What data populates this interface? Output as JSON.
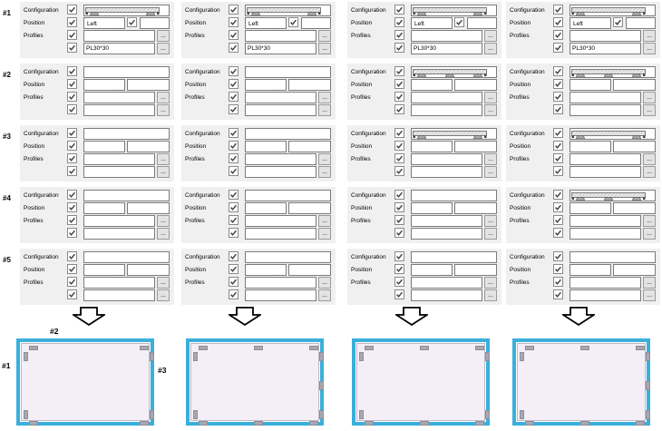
{
  "field_labels": {
    "configuration": "Configuration",
    "position": "Position",
    "profiles": "Profiles"
  },
  "group_numbers": [
    "#1",
    "#2",
    "#3",
    "#4",
    "#5"
  ],
  "browse_label": "...",
  "checkboxes_all_checked": true,
  "colors": {
    "panel_bg": "#f0f0f0",
    "control_border": "#7b7b7b",
    "frame_border": "#3aafdc",
    "frame_fill": "#f4eff7",
    "clip_gray": "#a8a8b2"
  },
  "columns": [
    {
      "groups": [
        {
          "config": "plate-2-supports",
          "position_option": "Left",
          "position_extra_checkbox": true,
          "position_value": "",
          "profile_1": "",
          "profile_2": "PL30*30"
        },
        {
          "config": "",
          "position_option": "",
          "position_extra_checkbox": false,
          "position_value": "",
          "profile_1": "",
          "profile_2": ""
        },
        {
          "config": "",
          "position_option": "",
          "position_extra_checkbox": false,
          "position_value": "",
          "profile_1": "",
          "profile_2": ""
        },
        {
          "config": "",
          "position_option": "",
          "position_extra_checkbox": false,
          "position_value": "",
          "profile_1": "",
          "profile_2": ""
        },
        {
          "config": "",
          "position_option": "",
          "position_extra_checkbox": false,
          "position_value": "",
          "profile_1": "",
          "profile_2": ""
        }
      ]
    },
    {
      "groups": [
        {
          "config": "plate-2-supports",
          "position_option": "Left",
          "position_extra_checkbox": true,
          "position_value": "",
          "profile_1": "",
          "profile_2": "PL30*30"
        },
        {
          "config": "",
          "position_option": "",
          "position_extra_checkbox": false,
          "position_value": "",
          "profile_1": "",
          "profile_2": ""
        },
        {
          "config": "",
          "position_option": "",
          "position_extra_checkbox": false,
          "position_value": "",
          "profile_1": "",
          "profile_2": ""
        },
        {
          "config": "",
          "position_option": "",
          "position_extra_checkbox": false,
          "position_value": "",
          "profile_1": "",
          "profile_2": ""
        },
        {
          "config": "",
          "position_option": "",
          "position_extra_checkbox": false,
          "position_value": "",
          "profile_1": "",
          "profile_2": ""
        }
      ]
    },
    {
      "groups": [
        {
          "config": "plate-2-supports",
          "position_option": "Left",
          "position_extra_checkbox": true,
          "position_value": "",
          "profile_1": "",
          "profile_2": "PL30*30"
        },
        {
          "config": "plate-3-supports",
          "position_option": "",
          "position_extra_checkbox": false,
          "position_value": "",
          "profile_1": "",
          "profile_2": ""
        },
        {
          "config": "plate-2-supports",
          "position_option": "",
          "position_extra_checkbox": false,
          "position_value": "",
          "profile_1": "",
          "profile_2": ""
        },
        {
          "config": "",
          "position_option": "",
          "position_extra_checkbox": false,
          "position_value": "",
          "profile_1": "",
          "profile_2": ""
        },
        {
          "config": "",
          "position_option": "",
          "position_extra_checkbox": false,
          "position_value": "",
          "profile_1": "",
          "profile_2": ""
        }
      ]
    },
    {
      "groups": [
        {
          "config": "plate-2-supports",
          "position_option": "Left",
          "position_extra_checkbox": true,
          "position_value": "",
          "profile_1": "",
          "profile_2": "PL30*30"
        },
        {
          "config": "plate-3-supports",
          "position_option": "",
          "position_extra_checkbox": false,
          "position_value": "",
          "profile_1": "",
          "profile_2": ""
        },
        {
          "config": "plate-2-supports",
          "position_option": "",
          "position_extra_checkbox": false,
          "position_value": "",
          "profile_1": "",
          "profile_2": ""
        },
        {
          "config": "plate-3-supports",
          "position_option": "",
          "position_extra_checkbox": false,
          "position_value": "",
          "profile_1": "",
          "profile_2": ""
        },
        {
          "config": "",
          "position_option": "",
          "position_extra_checkbox": false,
          "position_value": "",
          "profile_1": "",
          "profile_2": ""
        }
      ]
    }
  ],
  "frames": [
    {
      "edge_labels": {
        "left": "#1",
        "top": "#2",
        "right": "#3"
      },
      "clips": {
        "top": [
          "L",
          "R"
        ],
        "right": [
          "T",
          "B"
        ],
        "bottom": [
          "L",
          "R"
        ],
        "left": [
          "T",
          "B"
        ]
      }
    },
    {
      "clips": {
        "top": [
          "L",
          "C",
          "R"
        ],
        "right": [
          "T",
          "M",
          "B"
        ],
        "bottom": [
          "L",
          "C",
          "R"
        ],
        "left": [
          "T",
          "B"
        ]
      }
    },
    {
      "clips": {
        "top": [
          "L",
          "C",
          "R"
        ],
        "right": [
          "T",
          "B"
        ],
        "bottom": [
          "L",
          "C",
          "R"
        ],
        "left": [
          "T",
          "B"
        ]
      }
    },
    {
      "clips": {
        "top": [
          "L",
          "C",
          "R"
        ],
        "right": [
          "T",
          "M",
          "B"
        ],
        "bottom": [
          "L",
          "C",
          "R"
        ],
        "left": [
          "T",
          "B"
        ]
      }
    }
  ]
}
